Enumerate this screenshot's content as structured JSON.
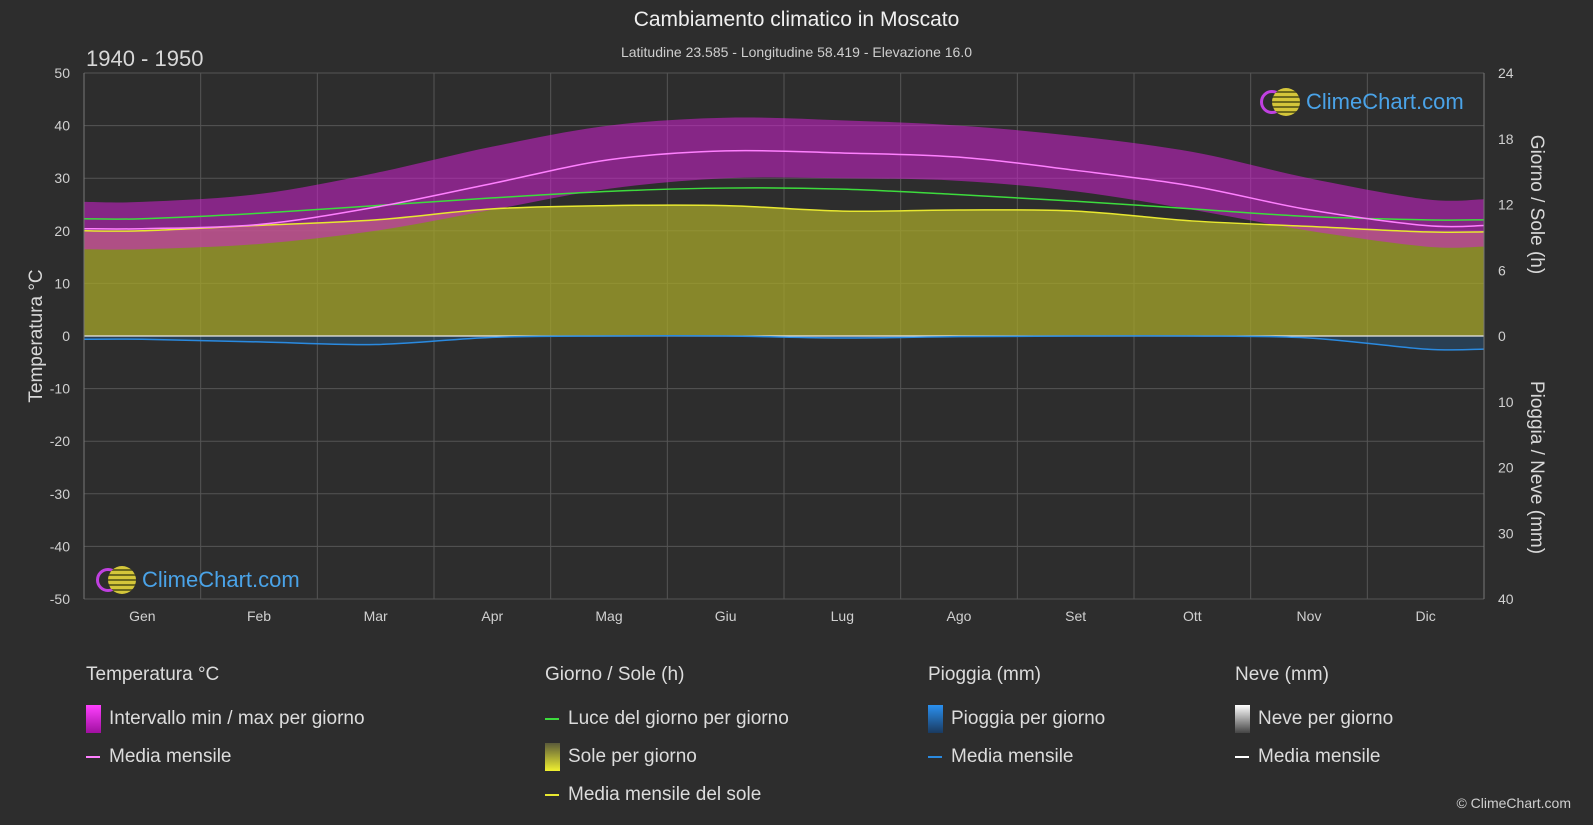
{
  "title": "Cambiamento climatico in Moscato",
  "subtitle": "Latitudine 23.585 - Longitudine 58.419 - Elevazione 16.0",
  "period": "1940 - 1950",
  "copyright": "© ClimeChart.com",
  "logo_text": "ClimeChart.com",
  "colors": {
    "temp_range": "#d020d0",
    "temp_mean": "#ff80ff",
    "daylight": "#3ddc3d",
    "sunshine_fill": "#a5a52a",
    "sunshine_mean": "#e8e830",
    "rain": "#1e78c8",
    "rain_mean": "#2a8ae0",
    "snow": "#e0e0e0",
    "snow_mean": "#ffffff",
    "logo_blue": "#4aa3e8"
  },
  "legend": {
    "temp": {
      "title": "Temperatura °C",
      "range": "Intervallo min / max per giorno",
      "mean": "Media mensile"
    },
    "sun": {
      "title": "Giorno / Sole (h)",
      "daylight": "Luce del giorno per giorno",
      "sunshine": "Sole per giorno",
      "mean": "Media mensile del sole"
    },
    "rain": {
      "title": "Pioggia (mm)",
      "daily": "Pioggia per giorno",
      "mean": "Media mensile"
    },
    "snow": {
      "title": "Neve (mm)",
      "daily": "Neve per giorno",
      "mean": "Media mensile"
    }
  },
  "chart_data": {
    "type": "area",
    "categories": [
      "Gen",
      "Feb",
      "Mar",
      "Apr",
      "Mag",
      "Giu",
      "Lug",
      "Ago",
      "Set",
      "Ott",
      "Nov",
      "Dic"
    ],
    "left_axis": {
      "label": "Temperatura °C",
      "ylim": [
        -50,
        50
      ],
      "ticks": [
        "50",
        "40",
        "30",
        "20",
        "10",
        "0",
        "-10",
        "-20",
        "-30",
        "-40",
        "-50"
      ]
    },
    "right_axis_top": {
      "label": "Giorno / Sole (h)",
      "ylim": [
        0,
        24
      ],
      "ticks": [
        "24",
        "18",
        "12",
        "6",
        "0"
      ]
    },
    "right_axis_bottom": {
      "label": "Pioggia / Neve (mm)",
      "ylim": [
        0,
        40
      ],
      "ticks": [
        "10",
        "20",
        "30",
        "40"
      ]
    },
    "grid": true,
    "series": [
      {
        "name": "Intervallo min / max per giorno",
        "axis": "temp",
        "min": [
          16.5,
          17.5,
          20.0,
          24.0,
          28.0,
          30.0,
          30.0,
          29.5,
          27.5,
          24.0,
          20.0,
          17.0
        ],
        "max": [
          25.5,
          27.0,
          31.0,
          36.0,
          40.0,
          41.5,
          41.0,
          40.0,
          38.0,
          35.0,
          30.0,
          26.0
        ]
      },
      {
        "name": "Media mensile",
        "axis": "temp",
        "values": [
          20.4,
          21.2,
          24.5,
          29.0,
          33.5,
          35.2,
          34.8,
          34.0,
          31.5,
          28.5,
          24.0,
          21.0
        ]
      },
      {
        "name": "Luce del giorno per giorno",
        "axis": "hours",
        "values": [
          10.7,
          11.2,
          11.9,
          12.6,
          13.2,
          13.5,
          13.4,
          12.9,
          12.3,
          11.6,
          10.9,
          10.6
        ]
      },
      {
        "name": "Sole per giorno",
        "axis": "hours",
        "values": [
          9.6,
          10.1,
          10.6,
          11.6,
          11.9,
          11.9,
          11.4,
          11.5,
          11.4,
          10.5,
          10.0,
          9.5
        ]
      },
      {
        "name": "Media mensile del sole",
        "axis": "hours",
        "values": [
          9.6,
          10.1,
          10.6,
          11.6,
          11.9,
          11.9,
          11.4,
          11.5,
          11.4,
          10.5,
          10.0,
          9.5
        ]
      },
      {
        "name": "Pioggia per giorno",
        "axis": "mm",
        "values": [
          0.5,
          0.9,
          1.3,
          0.2,
          0.0,
          0.0,
          0.3,
          0.1,
          0.0,
          0.0,
          0.3,
          2.0
        ]
      },
      {
        "name": "Media mensile",
        "axis": "mm",
        "values": [
          0.5,
          0.9,
          1.3,
          0.2,
          0.0,
          0.0,
          0.3,
          0.1,
          0.0,
          0.0,
          0.3,
          2.0
        ]
      }
    ]
  }
}
